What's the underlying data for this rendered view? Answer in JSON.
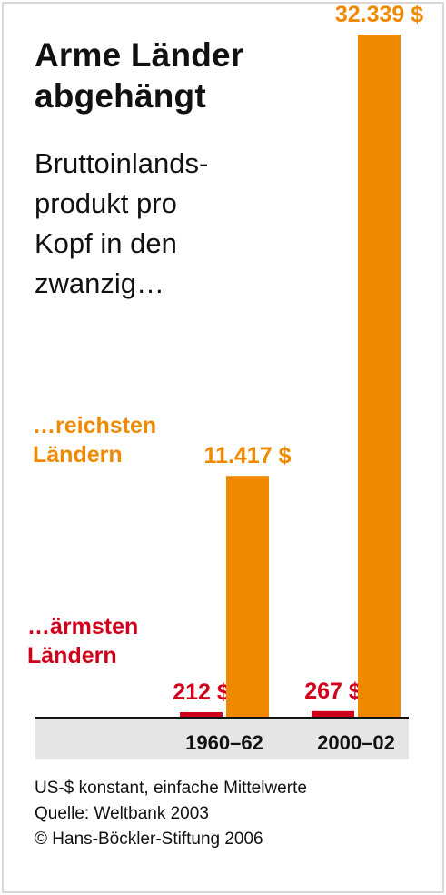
{
  "chart_data": {
    "type": "bar",
    "title": "Arme Länder\nabgehängt",
    "subtitle": "Bruttoinlands-\nprodukt pro\nKopf in den\nzwanzig…",
    "categories": [
      "1960–62",
      "2000–02"
    ],
    "series": [
      {
        "name": "…ärmsten\nLändern",
        "color": "#d0021b",
        "values": [
          212,
          267
        ],
        "value_labels": [
          "212 $",
          "267 $"
        ]
      },
      {
        "name": "…reichsten\nLändern",
        "color": "#ef8a00",
        "values": [
          11417,
          32339
        ],
        "value_labels": [
          "11.417 $",
          "32.339 $"
        ]
      }
    ],
    "ylim": [
      0,
      32339
    ],
    "grid": false,
    "axis_band_color": "#e6e6e6"
  },
  "footer": {
    "unit_note": "US-$ konstant, einfache Mittelwerte",
    "source": "Quelle: Weltbank 2003",
    "copyright": "© Hans-Böckler-Stiftung 2006"
  }
}
